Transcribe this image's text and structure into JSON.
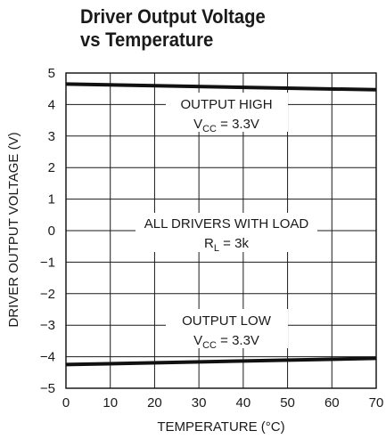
{
  "chart_data": {
    "type": "line",
    "title_lines": [
      "Driver Output Voltage",
      "vs Temperature"
    ],
    "xlabel": "TEMPERATURE (°C)",
    "ylabel": "DRIVER OUTPUT VOLTAGE (V)",
    "xlim": [
      0,
      70
    ],
    "ylim": [
      -5,
      5
    ],
    "x_ticks": [
      0,
      10,
      20,
      30,
      40,
      50,
      60,
      70
    ],
    "y_ticks": [
      5,
      4,
      3,
      2,
      1,
      0,
      -1,
      -2,
      -3,
      -4,
      -5
    ],
    "y_tick_labels": [
      "5",
      "4",
      "3",
      "2",
      "1",
      "0",
      "−1",
      "−2",
      "−3",
      "−4",
      "−5"
    ],
    "grid": true,
    "series": [
      {
        "x": [
          0,
          70
        ],
        "y": [
          4.65,
          4.47
        ]
      },
      {
        "x": [
          0,
          70
        ],
        "y": [
          -4.25,
          -4.05
        ]
      }
    ],
    "annotations": {
      "high": {
        "text": "OUTPUT HIGH",
        "vcc_main": "V",
        "vcc_sub": "CC",
        "vcc_rest": " = 3.3V"
      },
      "mid": {
        "text": "ALL DRIVERS WITH LOAD",
        "rl_main": "R",
        "rl_sub": "L",
        "rl_rest": " = 3k"
      },
      "low": {
        "text": "OUTPUT LOW",
        "vcc_main": "V",
        "vcc_sub": "CC",
        "vcc_rest": " = 3.3V"
      }
    }
  }
}
